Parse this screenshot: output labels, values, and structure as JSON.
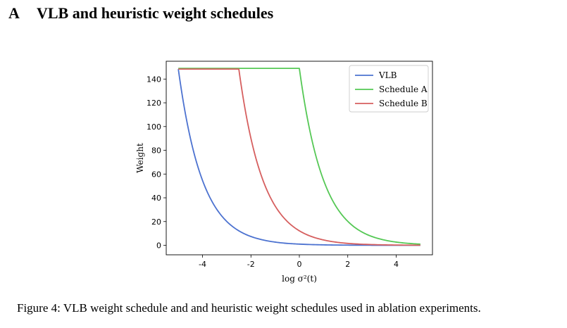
{
  "section": {
    "letter": "A",
    "title": "VLB and heuristic weight schedules"
  },
  "caption": {
    "label": "Figure 4:",
    "text": "VLB weight schedule and and heuristic weight schedules used in ablation experiments."
  },
  "chart_data": {
    "type": "line",
    "title": "",
    "xlabel": "log σ²(t)",
    "ylabel": "Weight",
    "xlim": [
      -5.5,
      5.5
    ],
    "ylim": [
      -8,
      155
    ],
    "xticks": [
      -4,
      -2,
      0,
      2,
      4
    ],
    "yticks": [
      0,
      20,
      40,
      60,
      80,
      100,
      120,
      140
    ],
    "legend_position": "top-right",
    "grid": false,
    "series": [
      {
        "name": "VLB",
        "color": "#4c72d0",
        "x": [
          -5,
          -4.5,
          -4,
          -3.5,
          -3,
          -2.5,
          -2,
          -1.5,
          -1,
          -0.5,
          0,
          1,
          2,
          3,
          4,
          5
        ],
        "y": [
          148.4,
          90,
          54.6,
          33.1,
          20.1,
          12.2,
          7.4,
          4.5,
          2.7,
          1.6,
          1.0,
          0.37,
          0.14,
          0.05,
          0.02,
          0.01
        ]
      },
      {
        "name": "Schedule A",
        "color": "#55c855",
        "x": [
          -5,
          0,
          0.5,
          1,
          1.5,
          2,
          2.5,
          3,
          3.5,
          4,
          4.5,
          5
        ],
        "y": [
          149,
          149,
          90.4,
          54.8,
          33.2,
          20.2,
          12.2,
          7.4,
          4.5,
          2.7,
          1.65,
          1.0
        ]
      },
      {
        "name": "Schedule B",
        "color": "#d65f5f",
        "x": [
          -5,
          -2.5,
          -2,
          -1.5,
          -1,
          -0.5,
          0,
          0.5,
          1,
          1.5,
          2,
          3,
          4,
          5
        ],
        "y": [
          148.4,
          148.4,
          90,
          54.6,
          33.1,
          20.1,
          12.2,
          7.4,
          4.5,
          2.7,
          1.6,
          0.6,
          0.22,
          0.08
        ]
      }
    ]
  }
}
